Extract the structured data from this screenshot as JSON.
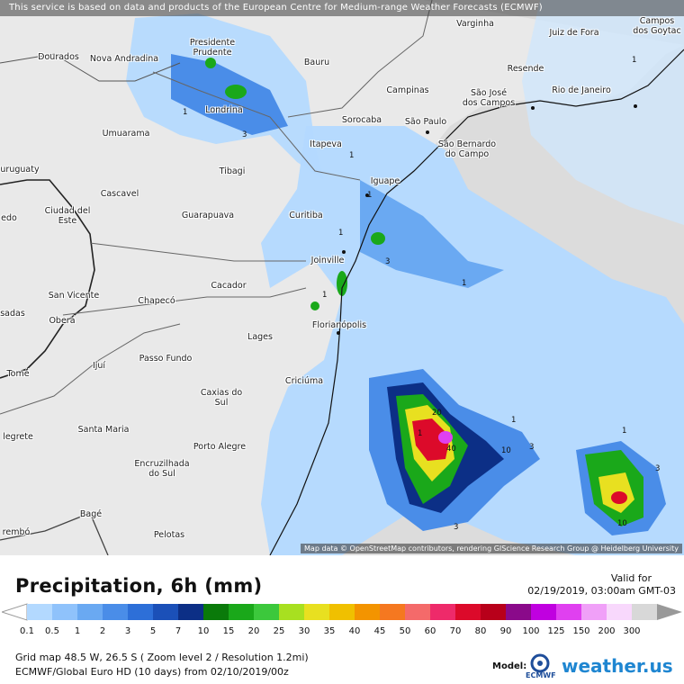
{
  "header": {
    "banner": "This service is based on data and products of the European Centre for Medium-range Weather Forecasts (ECMWF)"
  },
  "map": {
    "attribution": "Map data © OpenStreetMap contributors, rendering GIScience Research Group @ Heidelberg University",
    "cities": [
      {
        "id": "varginha",
        "name": "Varginha"
      },
      {
        "id": "juiz-de-fora",
        "name": "Juiz de Fora"
      },
      {
        "id": "campos",
        "name": "Campos\ndos Goytac"
      },
      {
        "id": "presidente-prudente",
        "name": "Presidente\nPrudente"
      },
      {
        "id": "dourados",
        "name": "Dourados"
      },
      {
        "id": "nova-andradina",
        "name": "Nova Andradina"
      },
      {
        "id": "bauru",
        "name": "Bauru"
      },
      {
        "id": "resende",
        "name": "Resende"
      },
      {
        "id": "campinas",
        "name": "Campinas"
      },
      {
        "id": "sao-jose",
        "name": "São José\ndos Campos"
      },
      {
        "id": "rio",
        "name": "Rio de Janeiro"
      },
      {
        "id": "londrina",
        "name": "Londrina"
      },
      {
        "id": "sorocaba",
        "name": "Sorocaba"
      },
      {
        "id": "sao-paulo",
        "name": "São Paulo"
      },
      {
        "id": "umuarama",
        "name": "Umuarama"
      },
      {
        "id": "itapeva",
        "name": "Itapeva"
      },
      {
        "id": "sao-bernardo",
        "name": "São Bernardo\ndo Campo"
      },
      {
        "id": "uruguaty",
        "name": "uruguaty"
      },
      {
        "id": "tibagi",
        "name": "Tibagi"
      },
      {
        "id": "cascavel",
        "name": "Cascavel"
      },
      {
        "id": "iguape",
        "name": "Iguape"
      },
      {
        "id": "edo",
        "name": "edo"
      },
      {
        "id": "ciudad-del-este",
        "name": "Ciudad del\nEste"
      },
      {
        "id": "guarapuava",
        "name": "Guarapuava"
      },
      {
        "id": "curitiba",
        "name": "Curitiba"
      },
      {
        "id": "joinville",
        "name": "Joinville"
      },
      {
        "id": "cacador",
        "name": "Cacador"
      },
      {
        "id": "san-vicente",
        "name": "San Vicente"
      },
      {
        "id": "chapeco",
        "name": "Chapecó"
      },
      {
        "id": "sadas",
        "name": "sadas"
      },
      {
        "id": "obera",
        "name": "Oberá"
      },
      {
        "id": "florianopolis",
        "name": "Florianópolis"
      },
      {
        "id": "lages",
        "name": "Lages"
      },
      {
        "id": "passo-fundo",
        "name": "Passo Fundo"
      },
      {
        "id": "ijui",
        "name": "Ijuí"
      },
      {
        "id": "tome",
        "name": "Tomé"
      },
      {
        "id": "criciuma",
        "name": "Criciúma"
      },
      {
        "id": "caxias",
        "name": "Caxias do\nSul"
      },
      {
        "id": "santa-maria",
        "name": "Santa Maria"
      },
      {
        "id": "legrete",
        "name": "legrete"
      },
      {
        "id": "porto-alegre",
        "name": "Porto Alegre"
      },
      {
        "id": "encruzilhada",
        "name": "Encruzilhada\ndo Sul"
      },
      {
        "id": "bage",
        "name": "Bagé"
      },
      {
        "id": "pelotas",
        "name": "Pelotas"
      },
      {
        "id": "rembo",
        "name": "rembó"
      }
    ],
    "contour_labels": [
      "1",
      "1",
      "3",
      "1",
      "1",
      "1",
      "3",
      "1",
      "1",
      "1",
      "20",
      "40",
      "10",
      "3",
      "1",
      "3",
      "10",
      "1",
      "3"
    ]
  },
  "legend": {
    "title": "Precipitation, 6h (mm)",
    "valid_label": "Valid for",
    "valid_time": "02/19/2019, 03:00am GMT-03",
    "values": [
      "0.1",
      "0.5",
      "1",
      "2",
      "3",
      "5",
      "7",
      "10",
      "15",
      "20",
      "25",
      "30",
      "35",
      "40",
      "45",
      "50",
      "60",
      "70",
      "80",
      "90",
      "100",
      "125",
      "150",
      "200",
      "300"
    ],
    "colors": [
      "#b3d9ff",
      "#8fc2fb",
      "#6aa9f2",
      "#4a8de8",
      "#2d6fd8",
      "#1b50b8",
      "#0c2f86",
      "#0a7a0a",
      "#1aa81a",
      "#3cc83c",
      "#a8e020",
      "#e8e020",
      "#f0c000",
      "#f39400",
      "#f57820",
      "#f46a6a",
      "#ee2a6a",
      "#dc0a2a",
      "#b8001a",
      "#8a0a8a",
      "#c000e0",
      "#e040f0",
      "#f0a0f8",
      "#f8d8fc",
      "#d8d8d8"
    ]
  },
  "footer": {
    "grid": "Grid map 48.5 W, 26.5 S ( Zoom level 2 / Resolution 1.2mi)",
    "model_run": "ECMWF/Global Euro HD (10 days) from 02/10/2019/00z",
    "model_label": "Model:",
    "model_name": "ECMWF",
    "brand": "weather.us"
  }
}
